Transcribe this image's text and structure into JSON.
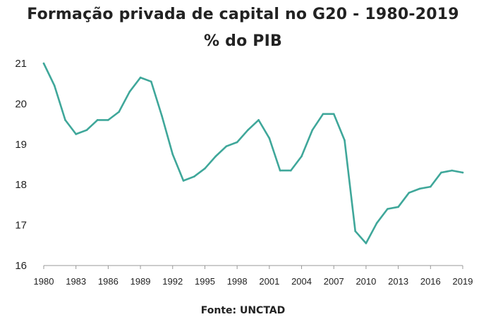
{
  "chart_data": {
    "type": "line",
    "title": "Formação privada de capital no G20 - 1980-2019",
    "subtitle": "% do PIB",
    "source": "Fonte: UNCTAD",
    "xlabel": "",
    "ylabel": "",
    "ylim": [
      16,
      21
    ],
    "yticks": [
      16,
      17,
      18,
      19,
      20,
      21
    ],
    "xticklabels": [
      "1980",
      "1983",
      "1986",
      "1989",
      "1992",
      "1995",
      "1998",
      "2001",
      "2004",
      "2007",
      "2010",
      "2013",
      "2016",
      "2019"
    ],
    "color": "#3fa79a",
    "x": [
      1980,
      1981,
      1982,
      1983,
      1984,
      1985,
      1986,
      1987,
      1988,
      1989,
      1990,
      1991,
      1992,
      1993,
      1994,
      1995,
      1996,
      1997,
      1998,
      1999,
      2000,
      2001,
      2002,
      2003,
      2004,
      2005,
      2006,
      2007,
      2008,
      2009,
      2010,
      2011,
      2012,
      2013,
      2014,
      2015,
      2016,
      2017,
      2018,
      2019
    ],
    "values": [
      21.0,
      20.45,
      19.6,
      19.25,
      19.35,
      19.6,
      19.6,
      19.8,
      20.3,
      20.65,
      20.55,
      19.7,
      18.75,
      18.1,
      18.2,
      18.4,
      18.7,
      18.95,
      19.05,
      19.35,
      19.6,
      19.15,
      18.35,
      18.35,
      18.7,
      19.35,
      19.75,
      19.75,
      19.1,
      16.85,
      16.55,
      17.05,
      17.4,
      17.45,
      17.8,
      17.9,
      17.95,
      18.3,
      18.35,
      18.3
    ]
  }
}
